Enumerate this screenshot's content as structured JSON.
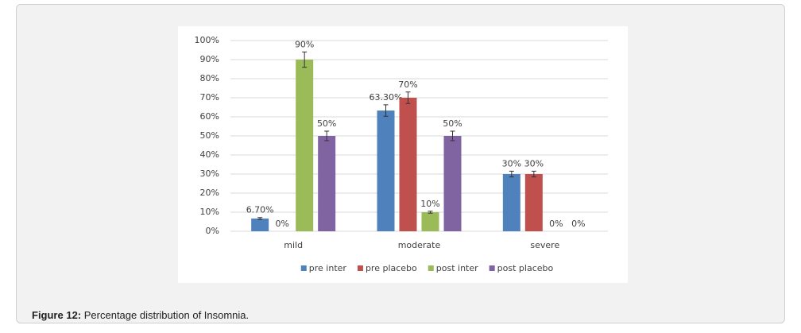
{
  "chart_data": {
    "type": "bar",
    "categories": [
      "mild",
      "moderate",
      "severe"
    ],
    "series": [
      {
        "name": "pre inter",
        "color": "#4f81bd",
        "values": [
          6.7,
          63.3,
          30
        ],
        "errors": [
          0.5,
          3,
          1.5
        ],
        "value_labels": [
          "6.70%",
          "63.30%",
          "30%"
        ]
      },
      {
        "name": "pre placebo",
        "color": "#c0504d",
        "values": [
          0,
          70,
          30
        ],
        "errors": [
          null,
          3,
          1.5
        ],
        "value_labels": [
          "0%",
          "70%",
          "30%"
        ]
      },
      {
        "name": "post inter",
        "color": "#9bbb59",
        "values": [
          90,
          10,
          0
        ],
        "errors": [
          4,
          0.5,
          null
        ],
        "value_labels": [
          "90%",
          "10%",
          "0%"
        ]
      },
      {
        "name": "post placebo",
        "color": "#8064a2",
        "values": [
          50,
          50,
          0
        ],
        "errors": [
          2.5,
          2.5,
          null
        ],
        "value_labels": [
          "50%",
          "50%",
          "0%"
        ]
      }
    ],
    "ylim": [
      0,
      100
    ],
    "yticks": [
      {
        "value": 0,
        "label": "0%"
      },
      {
        "value": 10,
        "label": "10%"
      },
      {
        "value": 20,
        "label": "20%"
      },
      {
        "value": 30,
        "label": "30%"
      },
      {
        "value": 40,
        "label": "40%"
      },
      {
        "value": 50,
        "label": "50%"
      },
      {
        "value": 60,
        "label": "60%"
      },
      {
        "value": 70,
        "label": "70%"
      },
      {
        "value": 80,
        "label": "80%"
      },
      {
        "value": 90,
        "label": "90%"
      },
      {
        "value": 100,
        "label": "100%"
      }
    ],
    "grid": true,
    "legend": "bottom"
  },
  "caption": {
    "label": "Figure 12:",
    "text": "Percentage distribution of Insomnia."
  }
}
